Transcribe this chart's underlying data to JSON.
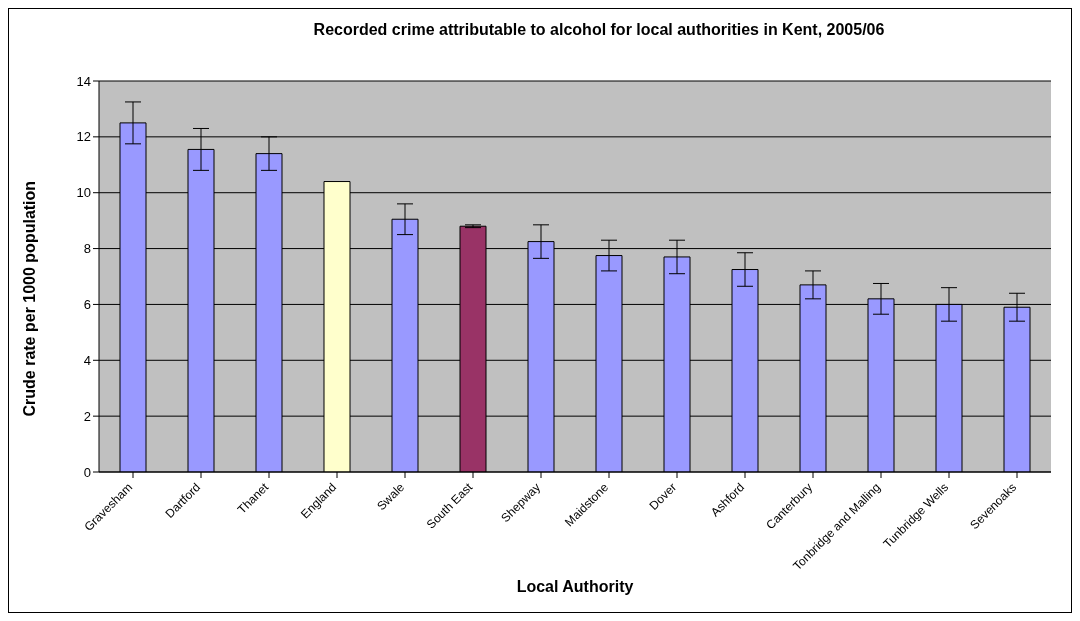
{
  "chart_data": {
    "type": "bar",
    "title": "Recorded crime attributable to alcohol for local authorities in Kent, 2005/06",
    "xlabel": "Local Authority",
    "ylabel": "Crude rate per 1000 population",
    "categories": [
      "Gravesham",
      "Dartford",
      "Thanet",
      "England",
      "Swale",
      "South East",
      "Shepway",
      "Maidstone",
      "Dover",
      "Ashford",
      "Canterbury",
      "Tonbridge and Malling",
      "Tunbridge Wells",
      "Sevenoaks"
    ],
    "values": [
      12.5,
      11.55,
      11.4,
      10.4,
      9.05,
      8.8,
      8.25,
      7.75,
      7.7,
      7.25,
      6.7,
      6.2,
      6.0,
      5.9
    ],
    "errors": [
      0.75,
      0.75,
      0.6,
      null,
      0.55,
      0.05,
      0.6,
      0.55,
      0.6,
      0.6,
      0.5,
      0.55,
      0.6,
      0.5
    ],
    "colors": [
      "#9999ff",
      "#9999ff",
      "#9999ff",
      "#ffffcc",
      "#9999ff",
      "#993366",
      "#9999ff",
      "#9999ff",
      "#9999ff",
      "#9999ff",
      "#9999ff",
      "#9999ff",
      "#9999ff",
      "#9999ff"
    ],
    "ylim": [
      0,
      14
    ],
    "yticks": [
      0,
      2,
      4,
      6,
      8,
      10,
      12,
      14
    ],
    "grid": "y"
  }
}
